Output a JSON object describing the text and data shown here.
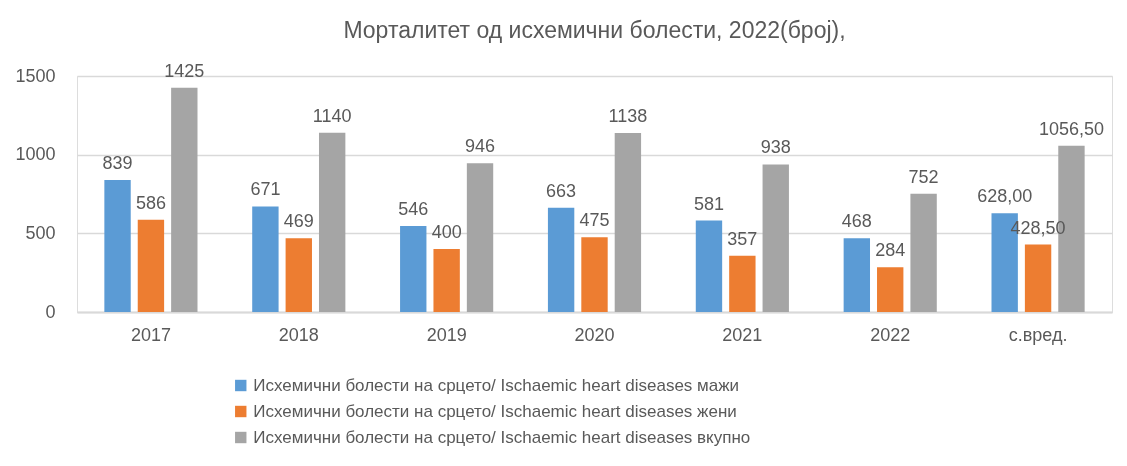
{
  "chart_data": {
    "type": "bar",
    "title": "Морталитет од исхемични болести, 2022(број),",
    "categories": [
      "2017",
      "2018",
      "2019",
      "2020",
      "2021",
      "2022",
      "с.вред."
    ],
    "series": [
      {
        "name": "Исхемични болести на срцето/ Ischaemic heart diseases мажи",
        "color": "#5b9bd5",
        "values": [
          839,
          671,
          546,
          663,
          581,
          468,
          628.0
        ],
        "value_labels": [
          "839",
          "671",
          "546",
          "663",
          "581",
          "468",
          "628,00"
        ]
      },
      {
        "name": "Исхемични болести на срцето/ Ischaemic heart diseases жени",
        "color": "#ed7d31",
        "values": [
          586,
          469,
          400,
          475,
          357,
          284,
          428.5
        ],
        "value_labels": [
          "586",
          "469",
          "400",
          "475",
          "357",
          "284",
          "428,50"
        ]
      },
      {
        "name": "Исхемични болести на срцето/ Ischaemic heart diseases вкупно",
        "color": "#a5a5a5",
        "values": [
          1425,
          1140,
          946,
          1138,
          938,
          752,
          1056.5
        ],
        "value_labels": [
          "1425",
          "1140",
          "946",
          "1138",
          "938",
          "752",
          "1056,50"
        ]
      }
    ],
    "ylim": [
      0,
      1500
    ],
    "yticks": [
      0,
      500,
      1000,
      1500
    ],
    "grid": "y",
    "legend": "bottom"
  }
}
